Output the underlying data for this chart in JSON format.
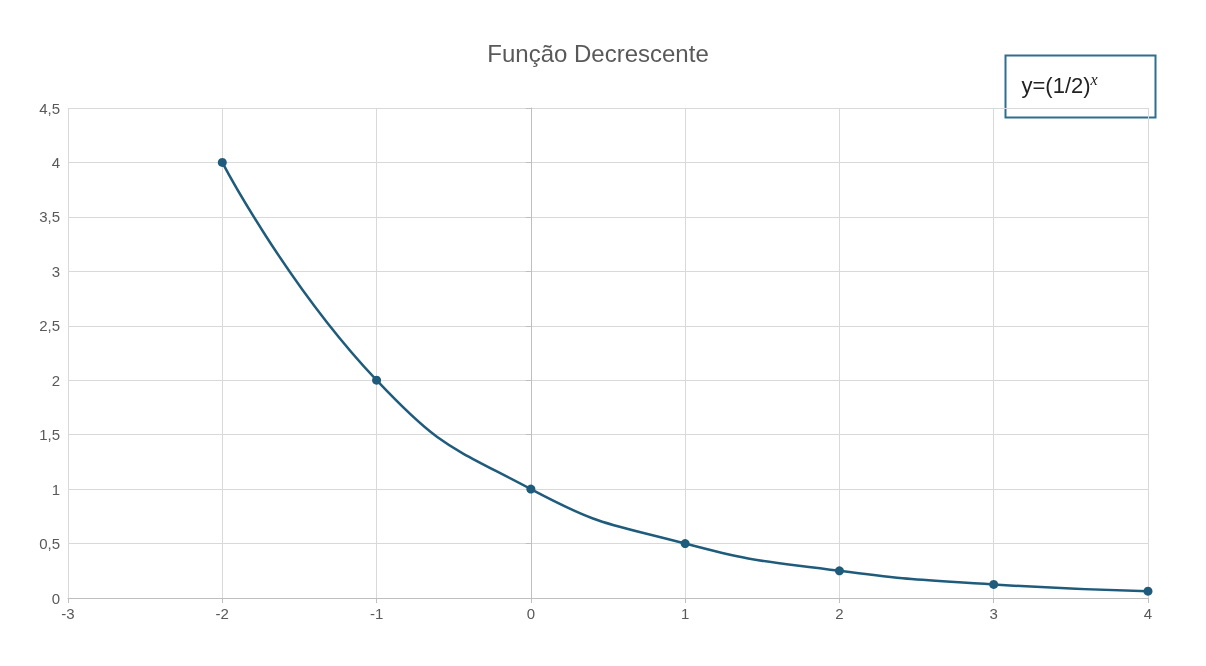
{
  "chart_data": {
    "type": "line",
    "title": "Função Decrescente",
    "x": [
      -2,
      -1,
      0,
      1,
      2,
      3,
      4
    ],
    "series": [
      {
        "color": "#1f5c7c",
        "values": [
          4,
          2,
          1,
          0.5,
          0.25,
          0.125,
          0.0625
        ]
      }
    ],
    "xlim": [
      -3,
      4
    ],
    "xticks": [
      -3,
      -2,
      -1,
      0,
      1,
      2,
      3,
      4
    ],
    "ylim": [
      0,
      4.5
    ],
    "yticks": [
      0,
      {
        "value": 0.5,
        "label": "0,5"
      },
      1,
      {
        "value": 1.5,
        "label": "1,5"
      },
      2,
      {
        "value": 2.5,
        "label": "2,5"
      },
      3,
      {
        "value": 3.5,
        "label": "3,5"
      },
      4,
      {
        "value": 4.5,
        "label": "4,5"
      }
    ],
    "grid": true,
    "marker": "circle",
    "line_style": "solid",
    "annotations": [
      "y=(1/2)$^{x}$"
    ]
  }
}
